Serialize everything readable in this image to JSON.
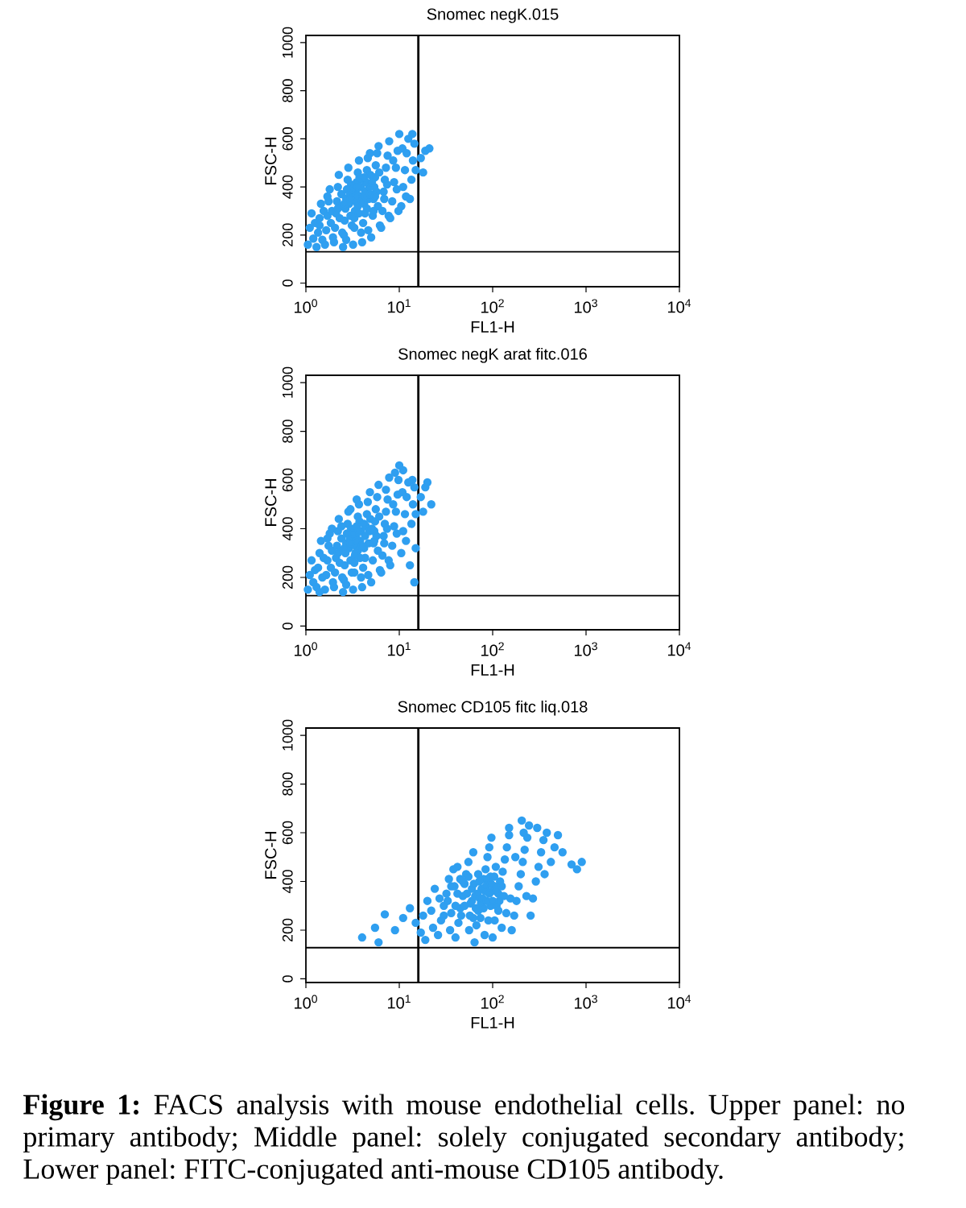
{
  "chart_data": [
    {
      "type": "scatter",
      "title": "Snomec negK.015",
      "xlabel": "FL1-H",
      "ylabel": "FSC-H",
      "log": "x",
      "marker": "circle",
      "color": "#2f9ff0",
      "xlim": [
        1,
        10000
      ],
      "ylim": [
        -15,
        1030
      ],
      "xticks": [
        {
          "value": 1,
          "label": "10$^{0}$"
        },
        {
          "value": 10,
          "label": "10$^{1}$"
        },
        {
          "value": 100,
          "label": "10$^{2}$"
        },
        {
          "value": 1000,
          "label": "10$^{3}$"
        },
        {
          "value": 10000,
          "label": "10$^{4}$"
        }
      ],
      "yticks": [
        0,
        200,
        400,
        600,
        800,
        1000
      ],
      "ref_lines": [
        {
          "axis": "x",
          "value": 16
        },
        {
          "axis": "y",
          "value": 130
        }
      ],
      "x": [
        1.05,
        1.1,
        1.15,
        1.2,
        1.25,
        1.3,
        1.35,
        1.4,
        1.45,
        1.5,
        1.55,
        1.4,
        1.6,
        1.65,
        1.7,
        1.75,
        1.8,
        1.85,
        1.9,
        1.95,
        1.7,
        2.0,
        2.05,
        2.1,
        2.15,
        2.2,
        2.25,
        2.3,
        2.35,
        2.4,
        2.45,
        2.2,
        2.5,
        2.55,
        2.6,
        2.65,
        2.7,
        2.75,
        2.8,
        2.85,
        2.9,
        2.95,
        3.0,
        3.05,
        3.1,
        2.7,
        3.2,
        3.3,
        3.35,
        3.4,
        3.45,
        3.5,
        3.6,
        3.7,
        3.8,
        3.9,
        3.3,
        3.6,
        3.75,
        3.9,
        4.0,
        4.1,
        4.2,
        4.3,
        4.4,
        4.5,
        4.6,
        4.7,
        4.8,
        4.9,
        4.3,
        4.65,
        4.85,
        5.0,
        5.2,
        5.3,
        5.4,
        5.5,
        5.6,
        5.8,
        6.0,
        5.7,
        6.1,
        5.9,
        6.2,
        6.4,
        6.6,
        6.8,
        7.0,
        7.2,
        7.5,
        7.8,
        6.9,
        7.4,
        7.7,
        8.0,
        8.4,
        8.8,
        9.2,
        9.6,
        10,
        8.6,
        9.4,
        9.8,
        10.5,
        11,
        11.5,
        12,
        12.5,
        10.8,
        11.8,
        13,
        13.5,
        14,
        14.5,
        15,
        13.8,
        17,
        19,
        21,
        18,
        2.6,
        3.0,
        3.2,
        3.5,
        3.6,
        3.7,
        3.8,
        4.0,
        4.2,
        4.4,
        4.5,
        4.9,
        5.1,
        5.3,
        5.5
      ],
      "values": [
        160,
        230,
        290,
        185,
        250,
        150,
        210,
        270,
        330,
        180,
        300,
        240,
        160,
        220,
        280,
        340,
        390,
        250,
        300,
        190,
        360,
        170,
        230,
        290,
        340,
        400,
        450,
        270,
        320,
        370,
        210,
        310,
        150,
        200,
        260,
        310,
        350,
        390,
        430,
        480,
        330,
        370,
        280,
        410,
        240,
        180,
        160,
        230,
        300,
        340,
        380,
        420,
        460,
        510,
        360,
        400,
        270,
        320,
        440,
        210,
        170,
        250,
        330,
        380,
        420,
        470,
        520,
        350,
        400,
        450,
        290,
        220,
        540,
        190,
        280,
        350,
        400,
        440,
        490,
        540,
        570,
        380,
        460,
        320,
        240,
        230,
        300,
        380,
        430,
        480,
        530,
        590,
        350,
        410,
        280,
        270,
        340,
        420,
        480,
        550,
        620,
        510,
        390,
        300,
        320,
        400,
        470,
        540,
        600,
        560,
        360,
        350,
        430,
        510,
        580,
        470,
        620,
        520,
        550,
        560,
        460,
        330,
        350,
        390,
        360,
        400,
        290,
        430,
        340,
        440,
        360,
        310,
        370,
        420,
        300,
        360
      ]
    },
    {
      "type": "scatter",
      "title": "Snomec negK arat fitc.016",
      "xlabel": "FL1-H",
      "ylabel": "FSC-H",
      "log": "x",
      "marker": "circle",
      "color": "#2f9ff0",
      "xlim": [
        1,
        10000
      ],
      "ylim": [
        -15,
        1030
      ],
      "xticks": [
        {
          "value": 1,
          "label": "10$^{0}$"
        },
        {
          "value": 10,
          "label": "10$^{1}$"
        },
        {
          "value": 100,
          "label": "10$^{2}$"
        },
        {
          "value": 1000,
          "label": "10$^{3}$"
        },
        {
          "value": 10000,
          "label": "10$^{4}$"
        }
      ],
      "yticks": [
        0,
        200,
        400,
        600,
        800,
        1000
      ],
      "ref_lines": [
        {
          "axis": "x",
          "value": 16
        },
        {
          "axis": "y",
          "value": 125
        }
      ],
      "x": [
        1.05,
        1.1,
        1.15,
        1.2,
        1.25,
        1.3,
        1.35,
        1.4,
        1.45,
        1.5,
        1.55,
        1.4,
        1.6,
        1.65,
        1.7,
        1.75,
        1.8,
        1.85,
        1.9,
        1.95,
        1.7,
        1.9,
        2.0,
        2.05,
        2.1,
        2.15,
        2.2,
        2.25,
        2.3,
        2.35,
        2.4,
        2.45,
        2.2,
        2.4,
        2.5,
        2.55,
        2.6,
        2.65,
        2.7,
        2.75,
        2.8,
        2.85,
        2.9,
        2.95,
        3.0,
        3.05,
        3.1,
        2.7,
        3.0,
        3.2,
        3.3,
        3.35,
        3.4,
        3.45,
        3.5,
        3.6,
        3.7,
        3.8,
        3.9,
        3.3,
        3.6,
        3.75,
        3.9,
        3.5,
        4.0,
        4.1,
        4.2,
        4.3,
        4.4,
        4.5,
        4.6,
        4.7,
        4.8,
        4.9,
        4.3,
        4.65,
        4.85,
        5.0,
        5.2,
        5.3,
        5.4,
        5.5,
        5.6,
        5.8,
        6.0,
        5.7,
        6.1,
        5.9,
        6.2,
        6.4,
        6.6,
        6.8,
        7.0,
        7.2,
        7.5,
        7.8,
        6.9,
        7.4,
        7.7,
        7.2,
        8.0,
        8.4,
        8.8,
        9.2,
        9.6,
        10,
        8.6,
        9.4,
        9.8,
        9.0,
        10.5,
        11,
        11.5,
        12,
        12.5,
        10.8,
        11.8,
        11,
        13,
        13.5,
        14,
        14.5,
        15,
        13.8,
        14.5,
        15,
        17,
        19,
        22,
        18,
        20,
        2.6,
        3.0,
        3.2,
        3.4,
        3.5,
        3.7,
        3.8,
        4.0,
        4.2,
        5.1,
        5.4
      ],
      "values": [
        150,
        210,
        270,
        180,
        230,
        160,
        240,
        300,
        350,
        200,
        280,
        140,
        150,
        210,
        270,
        330,
        380,
        240,
        310,
        180,
        360,
        400,
        160,
        220,
        280,
        330,
        390,
        440,
        260,
        310,
        360,
        200,
        300,
        410,
        140,
        190,
        250,
        300,
        340,
        380,
        420,
        470,
        320,
        360,
        270,
        400,
        220,
        170,
        480,
        150,
        220,
        290,
        330,
        370,
        410,
        450,
        500,
        350,
        390,
        260,
        310,
        430,
        200,
        520,
        160,
        240,
        320,
        370,
        410,
        460,
        510,
        340,
        390,
        440,
        280,
        210,
        550,
        180,
        270,
        340,
        390,
        430,
        480,
        530,
        580,
        370,
        450,
        310,
        230,
        220,
        290,
        370,
        420,
        470,
        520,
        610,
        340,
        400,
        270,
        560,
        250,
        330,
        410,
        470,
        540,
        660,
        500,
        380,
        600,
        630,
        300,
        390,
        460,
        530,
        590,
        550,
        350,
        640,
        250,
        420,
        500,
        570,
        460,
        600,
        180,
        320,
        530,
        570,
        500,
        470,
        590,
        320,
        340,
        380,
        300,
        350,
        390,
        280,
        330,
        420,
        400,
        350
      ]
    },
    {
      "type": "scatter",
      "title": "Snomec CD105 fitc liq.018",
      "xlabel": "FL1-H",
      "ylabel": "FSC-H",
      "log": "x",
      "marker": "circle",
      "color": "#2f9ff0",
      "xlim": [
        1,
        10000
      ],
      "ylim": [
        -15,
        1030
      ],
      "xticks": [
        {
          "value": 1,
          "label": "10$^{0}$"
        },
        {
          "value": 10,
          "label": "10$^{1}$"
        },
        {
          "value": 100,
          "label": "10$^{2}$"
        },
        {
          "value": 1000,
          "label": "10$^{3}$"
        },
        {
          "value": 10000,
          "label": "10$^{4}$"
        }
      ],
      "yticks": [
        0,
        200,
        400,
        600,
        800,
        1000
      ],
      "ref_lines": [
        {
          "axis": "x",
          "value": 16
        },
        {
          "axis": "y",
          "value": 128
        }
      ],
      "x": [
        4,
        5.5,
        7,
        9,
        11,
        13,
        6,
        15,
        17,
        18,
        20,
        22,
        24,
        19,
        23,
        26,
        28,
        30,
        32,
        34,
        36,
        38,
        27,
        35,
        39,
        40,
        43,
        45,
        48,
        50,
        52,
        55,
        58,
        60,
        62,
        45,
        56,
        42,
        62,
        64,
        67,
        70,
        73,
        76,
        80,
        84,
        88,
        92,
        95,
        98,
        70,
        90,
        82,
        97,
        100,
        105,
        110,
        115,
        120,
        128,
        135,
        142,
        150,
        155,
        108,
        140,
        125,
        150,
        160,
        170,
        180,
        190,
        200,
        210,
        220,
        235,
        245,
        175,
        230,
        215,
        205,
        255,
        270,
        290,
        310,
        330,
        350,
        380,
        300,
        360,
        420,
        460,
        500,
        560,
        700,
        800,
        900,
        65,
        75,
        85,
        95,
        105,
        115,
        30,
        33,
        36,
        40,
        42,
        46,
        48,
        50,
        53,
        55,
        57,
        60,
        63,
        66,
        69,
        72,
        74,
        78,
        80,
        83,
        86,
        88,
        92,
        96,
        100,
        104,
        110,
        118,
        125,
        132
      ],
      "values": [
        170,
        210,
        265,
        200,
        250,
        290,
        150,
        230,
        190,
        260,
        320,
        280,
        370,
        160,
        210,
        180,
        240,
        300,
        350,
        410,
        270,
        450,
        330,
        200,
        380,
        170,
        230,
        290,
        340,
        390,
        430,
        480,
        310,
        370,
        250,
        410,
        200,
        460,
        520,
        150,
        220,
        280,
        330,
        370,
        410,
        450,
        500,
        540,
        300,
        360,
        430,
        240,
        180,
        580,
        170,
        240,
        300,
        350,
        400,
        440,
        490,
        540,
        590,
        330,
        460,
        270,
        210,
        620,
        200,
        260,
        320,
        380,
        430,
        480,
        530,
        580,
        630,
        500,
        340,
        600,
        650,
        260,
        330,
        400,
        460,
        520,
        570,
        600,
        620,
        430,
        480,
        540,
        590,
        520,
        470,
        450,
        480,
        340,
        310,
        380,
        420,
        380,
        280,
        260,
        320,
        380,
        300,
        350,
        260,
        400,
        300,
        350,
        420,
        260,
        320,
        390,
        290,
        350,
        400,
        250,
        330,
        290,
        360,
        320,
        410,
        350,
        390,
        320,
        420,
        360,
        320,
        380,
        340
      ],
      "annotations": [
        "**Figure 1:** FACS analysis with mouse endothelial cells. Upper panel: no primary antibody; Middle panel: solely conjugated secondary antibody; Lower panel: FITC-conjugated anti-mouse CD105 antibody."
      ]
    }
  ]
}
